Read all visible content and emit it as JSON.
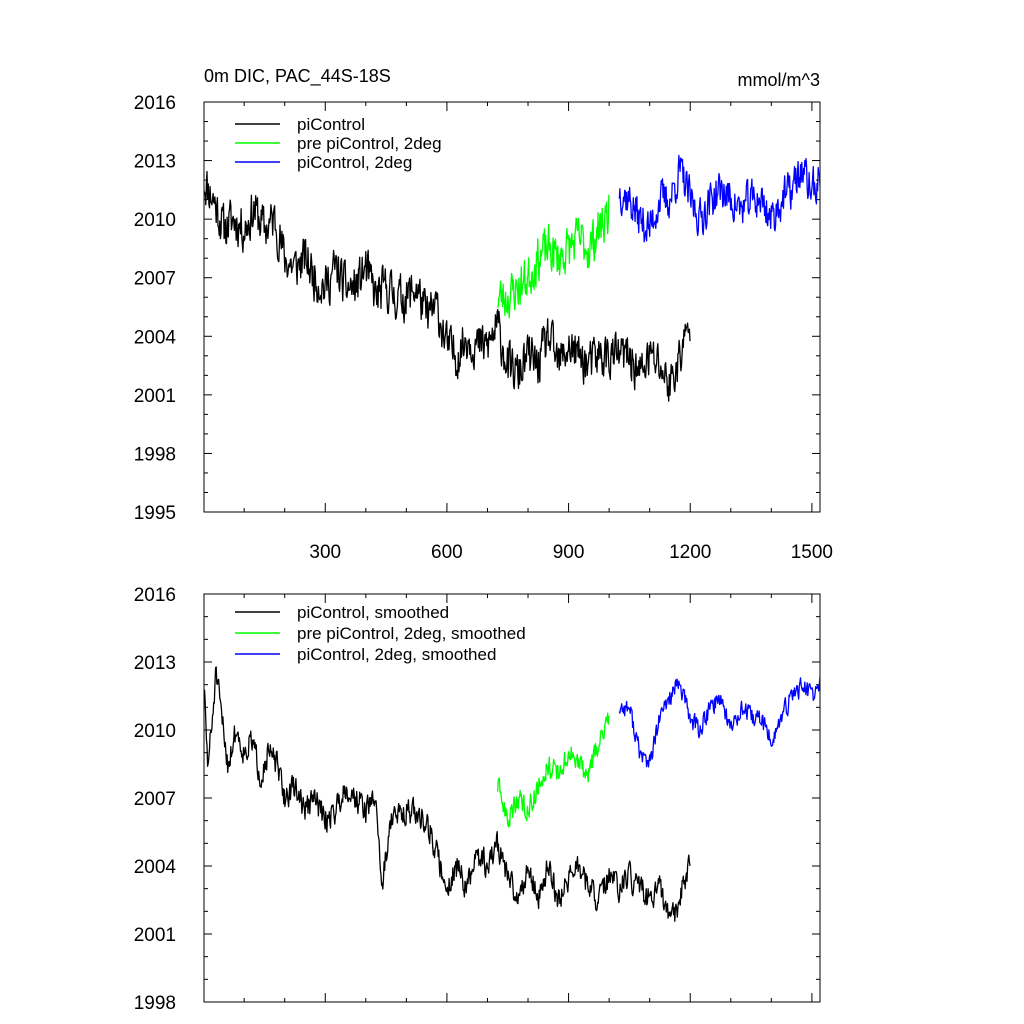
{
  "figure": {
    "title": "0m DIC, PAC_44S-18S",
    "units": "mmol/m^3"
  },
  "colors": {
    "black": "#000000",
    "green": "#00ff00",
    "blue": "#0000ff"
  },
  "chart_data": [
    {
      "type": "line",
      "panel": "top",
      "title": "0m DIC, PAC_44S-18S",
      "units": "mmol/m^3",
      "xlim": [
        1,
        1520
      ],
      "ylim": [
        1995,
        2016
      ],
      "xticks": [
        300,
        600,
        900,
        1200,
        1500
      ],
      "yticks": [
        1995,
        1998,
        2001,
        2004,
        2007,
        2010,
        2013,
        2016
      ],
      "x_tick_labels_visible": true,
      "legend_position": "top-left",
      "series": [
        {
          "name": "piControl",
          "color": "#000000",
          "x": [
            1,
            25,
            50,
            75,
            100,
            125,
            150,
            175,
            200,
            225,
            250,
            275,
            300,
            325,
            350,
            375,
            400,
            425,
            450,
            475,
            500,
            525,
            550,
            575,
            600,
            625,
            650,
            675,
            700,
            725,
            750,
            775,
            800,
            825,
            850,
            875,
            900,
            925,
            950,
            975,
            1000,
            1025,
            1050,
            1075,
            1100,
            1125,
            1150,
            1175,
            1200
          ],
          "values": [
            2012.0,
            2011.0,
            2009.5,
            2010.0,
            2009.5,
            2010.5,
            2009.5,
            2010.0,
            2008.0,
            2007.5,
            2008.0,
            2007.0,
            2006.5,
            2007.5,
            2006.5,
            2006.5,
            2007.5,
            2006.0,
            2006.5,
            2006.0,
            2006.0,
            2006.5,
            2005.0,
            2005.5,
            2003.5,
            2003.0,
            2004.0,
            2003.5,
            2003.5,
            2004.5,
            2002.5,
            2002.0,
            2003.0,
            2002.5,
            2004.0,
            2002.5,
            2003.5,
            2003.0,
            2002.5,
            2003.0,
            2003.0,
            2003.0,
            2003.0,
            2002.0,
            2003.0,
            2002.5,
            2001.5,
            2003.0,
            2004.5
          ],
          "amp": 1.6,
          "seed": 11
        },
        {
          "name": "pre piControl, 2deg",
          "color": "#00ff00",
          "x": [
            725,
            750,
            775,
            800,
            825,
            850,
            875,
            900,
            925,
            950,
            975,
            1000
          ],
          "values": [
            2006.0,
            2006.0,
            2006.5,
            2007.0,
            2008.0,
            2008.5,
            2008.0,
            2008.5,
            2009.0,
            2008.5,
            2009.5,
            2010.5
          ],
          "amp": 1.6,
          "seed": 23
        },
        {
          "name": "piControl, 2deg",
          "color": "#0000ff",
          "x": [
            1025,
            1050,
            1075,
            1100,
            1125,
            1150,
            1175,
            1200,
            1225,
            1250,
            1275,
            1300,
            1325,
            1350,
            1375,
            1400,
            1425,
            1450,
            1475,
            1500,
            1520
          ],
          "values": [
            2011.5,
            2011.0,
            2010.0,
            2009.5,
            2011.0,
            2011.0,
            2012.5,
            2011.0,
            2010.0,
            2011.0,
            2011.5,
            2011.0,
            2010.5,
            2011.0,
            2011.0,
            2010.0,
            2011.0,
            2011.5,
            2012.5,
            2011.5,
            2012.0
          ],
          "amp": 1.4,
          "seed": 37
        }
      ]
    },
    {
      "type": "line",
      "panel": "bottom",
      "xlim": [
        1,
        1520
      ],
      "ylim": [
        1998,
        2016
      ],
      "xticks": [
        300,
        600,
        900,
        1200,
        1500
      ],
      "yticks": [
        1998,
        2001,
        2004,
        2007,
        2010,
        2013,
        2016
      ],
      "x_tick_labels_visible": false,
      "legend_position": "top-left",
      "series": [
        {
          "name": "piControl, smoothed",
          "color": "#000000",
          "x": [
            1,
            10,
            20,
            30,
            45,
            60,
            80,
            100,
            120,
            140,
            160,
            180,
            200,
            225,
            250,
            275,
            300,
            325,
            350,
            375,
            400,
            425,
            440,
            460,
            500,
            550,
            575,
            600,
            625,
            650,
            675,
            700,
            725,
            750,
            775,
            800,
            825,
            850,
            875,
            900,
            925,
            950,
            975,
            1000,
            1025,
            1050,
            1075,
            1100,
            1125,
            1150,
            1175,
            1200
          ],
          "values": [
            2012.0,
            2008.5,
            2010.0,
            2012.5,
            2010.5,
            2008.5,
            2010.0,
            2009.0,
            2009.5,
            2008.0,
            2009.0,
            2008.5,
            2007.0,
            2007.5,
            2006.5,
            2007.0,
            2006.0,
            2006.5,
            2007.5,
            2007.0,
            2006.5,
            2007.0,
            2003.0,
            2006.0,
            2006.5,
            2006.0,
            2004.5,
            2003.0,
            2004.0,
            2003.0,
            2004.5,
            2004.0,
            2005.0,
            2003.5,
            2002.5,
            2004.0,
            2002.5,
            2004.0,
            2002.5,
            2003.5,
            2004.0,
            2003.0,
            2002.5,
            2003.5,
            2003.0,
            2003.5,
            2003.0,
            2002.5,
            2003.0,
            2001.5,
            2002.5,
            2004.5
          ],
          "amp": 0.8,
          "seed": 51
        },
        {
          "name": "pre piControl, 2deg, smoothed",
          "color": "#00ff00",
          "x": [
            725,
            750,
            775,
            800,
            825,
            850,
            875,
            900,
            925,
            950,
            975,
            1000
          ],
          "values": [
            2007.5,
            2006.0,
            2007.0,
            2006.5,
            2007.5,
            2008.5,
            2008.0,
            2009.0,
            2008.5,
            2008.0,
            2009.5,
            2010.5
          ],
          "amp": 0.7,
          "seed": 63
        },
        {
          "name": "piControl, 2deg, smoothed",
          "color": "#0000ff",
          "x": [
            1025,
            1050,
            1075,
            1100,
            1125,
            1150,
            1175,
            1200,
            1225,
            1250,
            1275,
            1300,
            1325,
            1350,
            1375,
            1400,
            1425,
            1450,
            1475,
            1500,
            1520
          ],
          "values": [
            2011.0,
            2011.0,
            2009.0,
            2008.5,
            2010.5,
            2011.5,
            2012.0,
            2010.5,
            2010.0,
            2011.0,
            2011.5,
            2010.0,
            2011.0,
            2010.5,
            2010.5,
            2009.5,
            2010.5,
            2011.5,
            2012.0,
            2011.5,
            2012.0
          ],
          "amp": 0.6,
          "seed": 77
        }
      ]
    }
  ]
}
